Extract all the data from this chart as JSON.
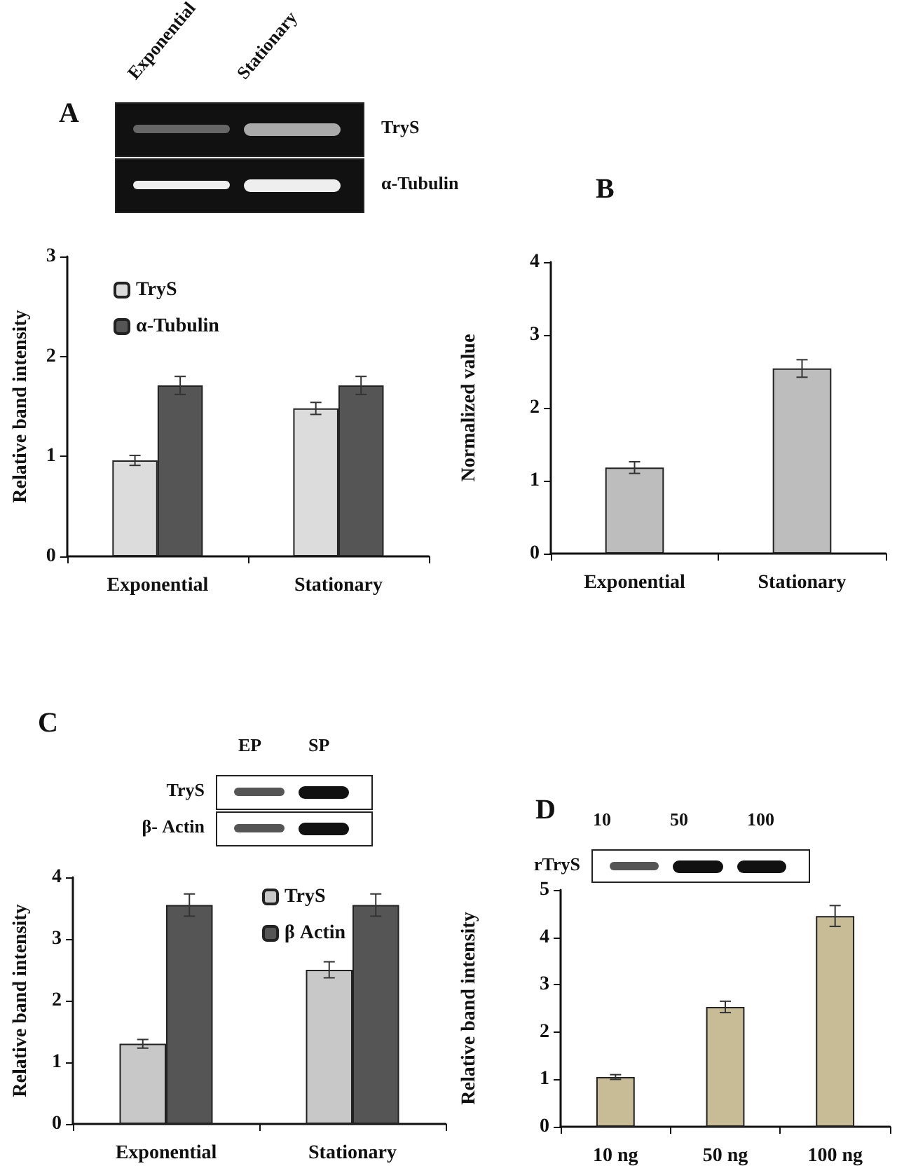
{
  "chart_data": [
    {
      "type": "other",
      "title": "A",
      "categories": [
        "Exponential",
        "Stationary"
      ],
      "y_categories": [
        "TryS",
        "α-Tubulin"
      ]
    },
    {
      "type": "bar",
      "ylabel": "Relative band intensity",
      "categories": [
        "Exponential",
        "Stationary"
      ],
      "series": [
        {
          "name": "TryS",
          "color": "#dcdcdc",
          "values": [
            0.96,
            1.48
          ],
          "errors": [
            0.05,
            0.06
          ]
        },
        {
          "name": "α-Tubulin",
          "color": "#555555",
          "values": [
            1.71,
            1.71
          ],
          "errors": [
            0.09,
            0.09
          ]
        }
      ],
      "ylim": [
        0,
        3
      ],
      "yticks": [
        0,
        1,
        2,
        3
      ],
      "grid": false,
      "legend": "top left"
    },
    {
      "type": "bar",
      "title": "B",
      "ylabel": "Normalized value",
      "categories": [
        "Exponential",
        "Stationary"
      ],
      "series": [
        {
          "color": "#bdbdbd",
          "values": [
            1.18,
            2.54
          ],
          "errors": [
            0.08,
            0.12
          ]
        }
      ],
      "ylim": [
        0,
        4
      ],
      "yticks": [
        0,
        1,
        2,
        3,
        4
      ],
      "grid": false,
      "legend": false
    },
    {
      "type": "other",
      "title": "C",
      "categories": [
        "EP",
        "SP"
      ],
      "y_categories": [
        "TryS",
        "β- Actin"
      ]
    },
    {
      "type": "bar",
      "ylabel": "Relative band intensity",
      "categories": [
        "Exponential",
        "Stationary"
      ],
      "series": [
        {
          "name": "TryS",
          "color": "#c8c8c8",
          "values": [
            1.3,
            2.5
          ],
          "errors": [
            0.07,
            0.13
          ]
        },
        {
          "name": "β Actin",
          "color": "#555555",
          "values": [
            3.55,
            3.55
          ],
          "errors": [
            0.18,
            0.18
          ]
        }
      ],
      "ylim": [
        0,
        4
      ],
      "yticks": [
        0,
        1,
        2,
        3,
        4
      ],
      "grid": false,
      "legend": "top"
    },
    {
      "type": "other",
      "title": "D",
      "categories": [
        "10",
        "50",
        "100"
      ],
      "y_categories": [
        "rTryS"
      ]
    },
    {
      "type": "bar",
      "ylabel": "Relative band intensity",
      "categories": [
        "10 ng",
        "50 ng",
        "100 ng"
      ],
      "series": [
        {
          "color": "#c8bc96",
          "values": [
            1.05,
            2.53,
            4.45
          ],
          "errors": [
            0.05,
            0.12,
            0.22
          ]
        }
      ],
      "ylim": [
        0,
        5
      ],
      "yticks": [
        0,
        1,
        2,
        3,
        4,
        5
      ],
      "grid": false,
      "legend": false
    }
  ]
}
